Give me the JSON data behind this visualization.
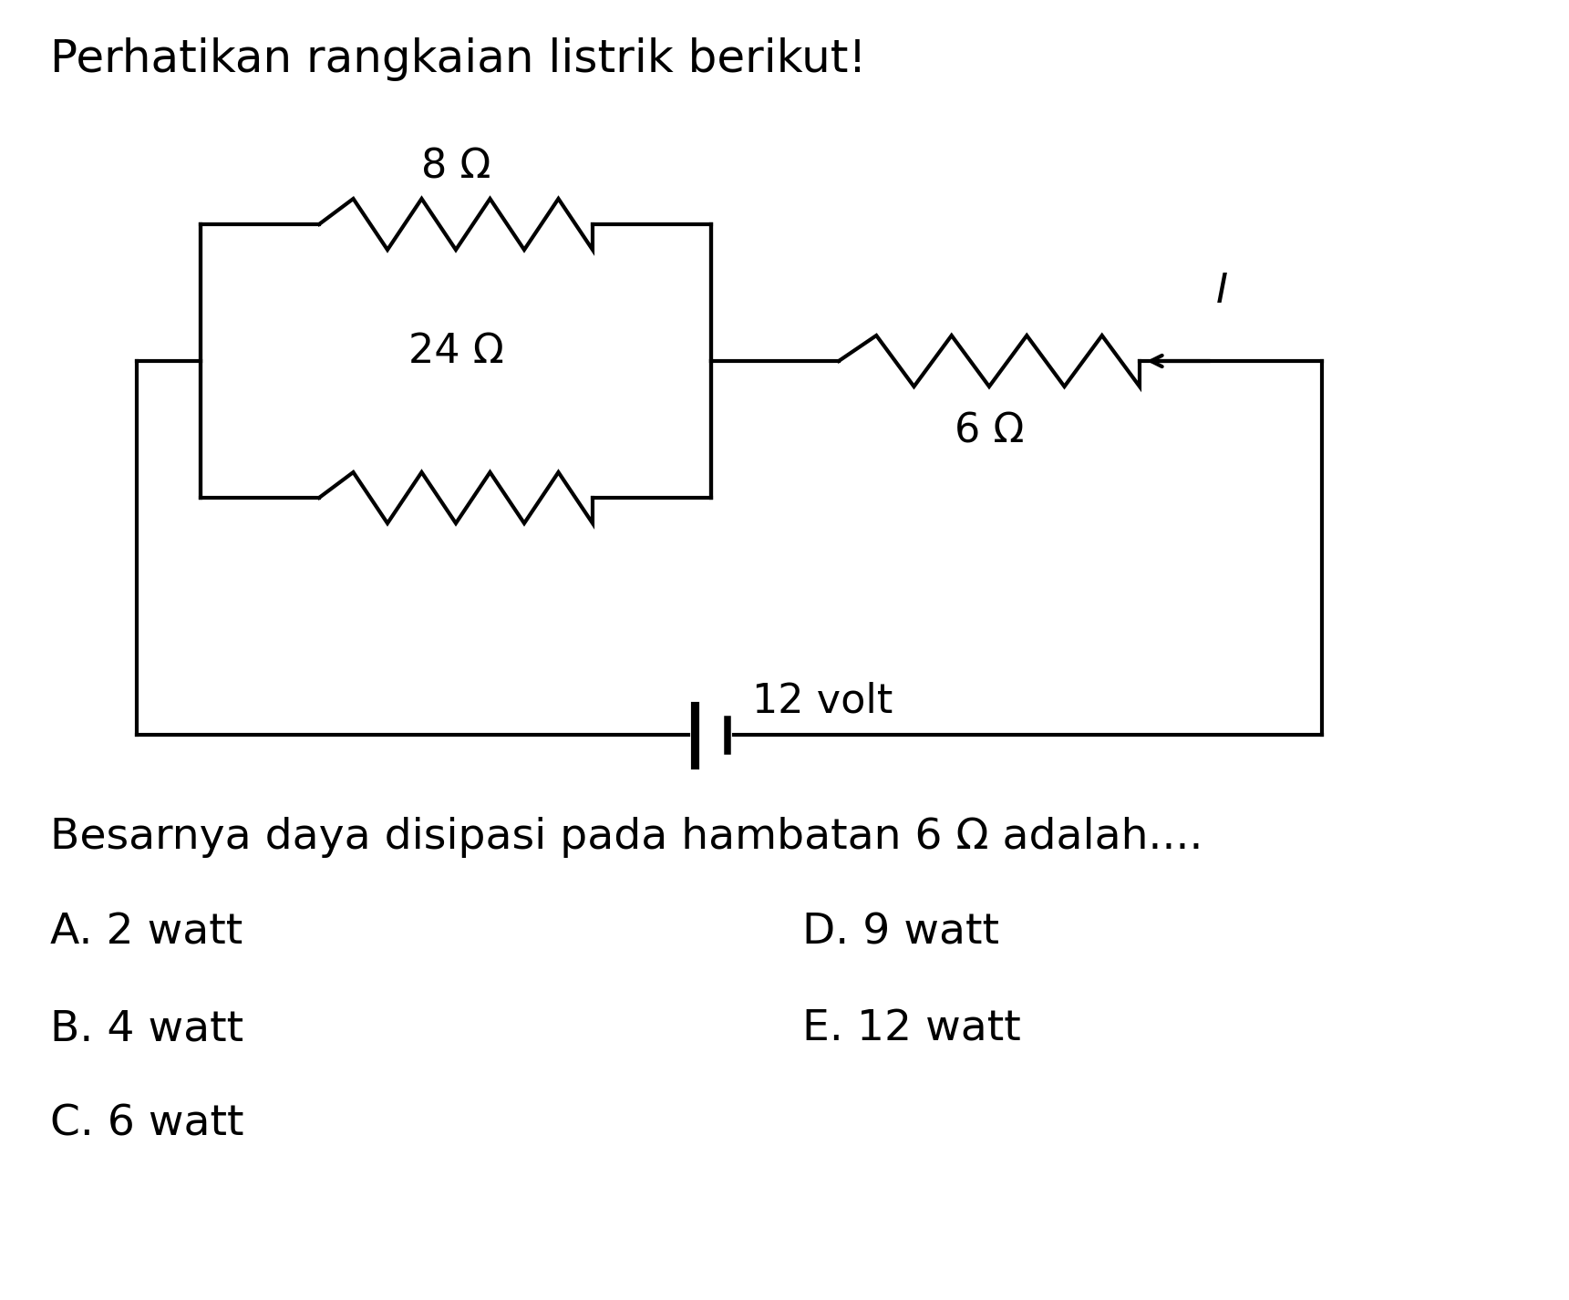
{
  "title": "Perhatikan rangkaian listrik berikut!",
  "question": "Besarnya daya disipasi pada hambatan 6 Ω adalah....",
  "options_left": [
    "A. 2 watt",
    "B. 4 watt",
    "C. 6 watt"
  ],
  "options_right": [
    "D. 9 watt",
    "E. 12 watt"
  ],
  "background_color": "#ffffff",
  "line_color": "#000000",
  "text_color": "#000000",
  "lw": 3.0,
  "resistor_8": "8 Ω",
  "resistor_24": "24 Ω",
  "resistor_6": "6 Ω",
  "battery_label": "12 volt",
  "current_label": "I",
  "title_fontsize": 36,
  "label_fontsize": 32,
  "question_fontsize": 34,
  "option_fontsize": 34
}
